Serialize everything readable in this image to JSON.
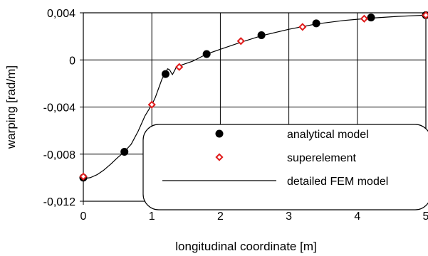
{
  "chart_data": {
    "type": "scatter",
    "xlabel": "longitudinal coordinate [m]",
    "ylabel": "warping [rad/m]",
    "xlim": [
      0,
      5
    ],
    "ylim": [
      -0.012,
      0.004
    ],
    "x_ticks": [
      {
        "value": 0,
        "label": "0"
      },
      {
        "value": 1,
        "label": "1"
      },
      {
        "value": 2,
        "label": "2"
      },
      {
        "value": 3,
        "label": "3"
      },
      {
        "value": 4,
        "label": "4"
      },
      {
        "value": 5,
        "label": "5"
      }
    ],
    "y_ticks": [
      {
        "value": 0.004,
        "label": "0,004"
      },
      {
        "value": 0,
        "label": "0"
      },
      {
        "value": -0.004,
        "label": "-0,004"
      },
      {
        "value": -0.008,
        "label": "-0,008"
      },
      {
        "value": -0.012,
        "label": "-0,012"
      }
    ],
    "grid": true,
    "legend_position": "bottom-right",
    "series": [
      {
        "name": "analytical model",
        "kind": "points",
        "marker": "filled-circle",
        "color": "#000000",
        "points": [
          [
            0,
            -0.01
          ],
          [
            0.6,
            -0.0078
          ],
          [
            1.2,
            -0.0012
          ],
          [
            1.8,
            0.0005
          ],
          [
            2.6,
            0.0021
          ],
          [
            3.4,
            0.0031
          ],
          [
            4.2,
            0.0036
          ],
          [
            5.0,
            0.0038
          ]
        ]
      },
      {
        "name": "superelement",
        "kind": "points",
        "marker": "open-diamond",
        "color": "#e01b1b",
        "points": [
          [
            0,
            -0.0099
          ],
          [
            1.0,
            -0.0038
          ],
          [
            1.4,
            -0.0006
          ],
          [
            2.3,
            0.0016
          ],
          [
            3.2,
            0.0028
          ],
          [
            4.1,
            0.0035
          ],
          [
            5.0,
            0.0038
          ]
        ]
      },
      {
        "name": "detailed FEM model",
        "kind": "line",
        "color": "#000000",
        "points": [
          [
            0,
            -0.01
          ],
          [
            0.05,
            -0.01004
          ],
          [
            0.1,
            -0.01
          ],
          [
            0.2,
            -0.00975
          ],
          [
            0.3,
            -0.00935
          ],
          [
            0.4,
            -0.00885
          ],
          [
            0.5,
            -0.0083
          ],
          [
            0.6,
            -0.0078
          ],
          [
            0.7,
            -0.00715
          ],
          [
            0.8,
            -0.00605
          ],
          [
            0.9,
            -0.00475
          ],
          [
            1.0,
            -0.0038
          ],
          [
            1.05,
            -0.0032
          ],
          [
            1.1,
            -0.0024
          ],
          [
            1.15,
            -0.0016
          ],
          [
            1.2,
            -0.0011
          ],
          [
            1.23,
            -0.00075
          ],
          [
            1.26,
            -0.00085
          ],
          [
            1.3,
            -0.00125
          ],
          [
            1.35,
            -0.0007
          ],
          [
            1.4,
            -0.0005
          ],
          [
            1.6,
            -0.0001
          ],
          [
            1.8,
            0.0005
          ],
          [
            2.0,
            0.0009
          ],
          [
            2.3,
            0.0015
          ],
          [
            2.6,
            0.00205
          ],
          [
            3.0,
            0.0026
          ],
          [
            3.4,
            0.00305
          ],
          [
            3.8,
            0.00335
          ],
          [
            4.2,
            0.00355
          ],
          [
            4.6,
            0.0037
          ],
          [
            5.0,
            0.0038
          ]
        ]
      }
    ]
  }
}
